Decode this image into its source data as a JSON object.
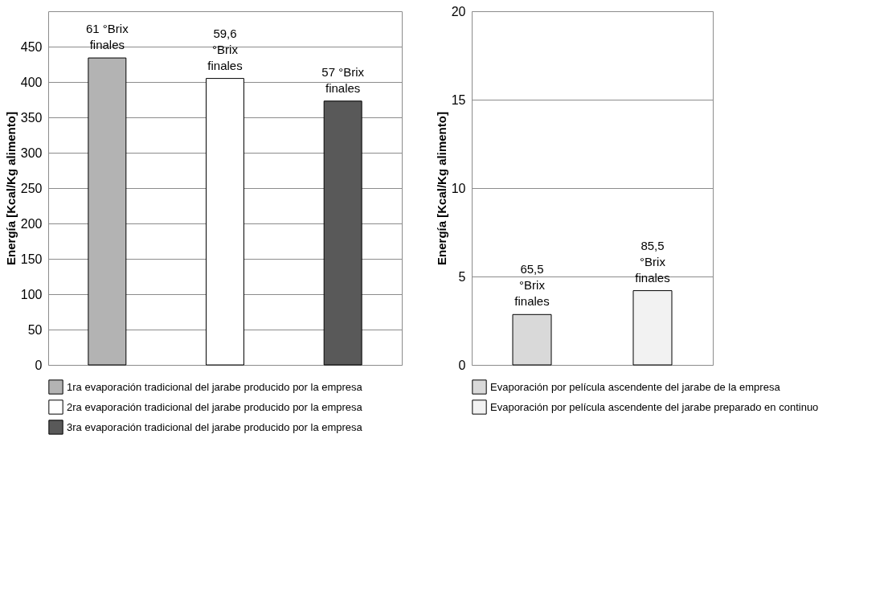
{
  "chart_data": [
    {
      "type": "bar",
      "ylabel": "Energía [Kcal/Kg alimento]",
      "categories": [
        null,
        null,
        null
      ],
      "ylim": [
        0,
        500
      ],
      "yticks": [
        0,
        50,
        100,
        150,
        200,
        250,
        300,
        350,
        400,
        450
      ],
      "grid": "y",
      "legend": "bottom",
      "tick_labels": "y",
      "series": [
        {
          "name": "1ra evaporación tradicional del jarabe producido por la empresa",
          "color": "#b3b3b3",
          "values": [
            434,
            null,
            null
          ]
        },
        {
          "name": "2ra evaporación tradicional del jarabe producido por la empresa",
          "color": "#ffffff",
          "values": [
            null,
            405,
            null
          ]
        },
        {
          "name": "3ra evaporación tradicional del jarabe producido por la empresa",
          "color": "#595959",
          "values": [
            null,
            null,
            373
          ]
        }
      ],
      "annotations": [
        "61 °Brix finales",
        "59,6 °Brix finales",
        "57 °Brix finales"
      ]
    },
    {
      "type": "bar",
      "ylabel": "Energía [Kcal/Kg alimento]",
      "categories": [
        null,
        null
      ],
      "ylim": [
        0,
        20
      ],
      "yticks": [
        0,
        5,
        10,
        15,
        20
      ],
      "grid": "y",
      "legend": "bottom",
      "tick_labels": "y",
      "series": [
        {
          "name": "Evaporación por película ascendente del jarabe de la empresa",
          "color": "#d9d9d9",
          "values": [
            2.85,
            null
          ]
        },
        {
          "name": "Evaporación por película ascendente del jarabe preparado en continuo",
          "color": "#f2f2f2",
          "values": [
            null,
            4.2
          ]
        }
      ],
      "annotations": [
        "65,5 °Brix finales",
        "85,5 °Brix finales"
      ]
    }
  ]
}
